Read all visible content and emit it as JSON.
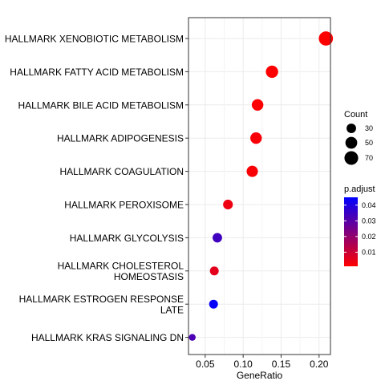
{
  "chart_data": {
    "type": "scatter",
    "title": "",
    "xlabel": "GeneRatio",
    "ylabel": "",
    "xlim": [
      0.028,
      0.215
    ],
    "xticks": [
      0.05,
      0.1,
      0.15,
      0.2
    ],
    "xtick_labels": [
      "0.05",
      "0.10",
      "0.15",
      "0.20"
    ],
    "grid": true,
    "categories": [
      "HALLMARK XENOBIOTIC METABOLISM",
      "HALLMARK FATTY ACID METABOLISM",
      "HALLMARK BILE ACID METABOLISM",
      "HALLMARK ADIPOGENESIS",
      "HALLMARK COAGULATION",
      "HALLMARK PEROXISOME",
      "HALLMARK GLYCOLYSIS",
      "HALLMARK CHOLESTEROL HOMEOSTASIS",
      "HALLMARK ESTROGEN RESPONSE LATE",
      "HALLMARK KRAS SIGNALING DN"
    ],
    "category_lines": [
      [
        "HALLMARK XENOBIOTIC METABOLISM"
      ],
      [
        "HALLMARK FATTY ACID METABOLISM"
      ],
      [
        "HALLMARK BILE ACID METABOLISM"
      ],
      [
        "HALLMARK ADIPOGENESIS"
      ],
      [
        "HALLMARK COAGULATION"
      ],
      [
        "HALLMARK PEROXISOME"
      ],
      [
        "HALLMARK GLYCOLYSIS"
      ],
      [
        "HALLMARK CHOLESTEROL",
        "HOMEOSTASIS"
      ],
      [
        "HALLMARK ESTROGEN RESPONSE",
        "LATE"
      ],
      [
        "HALLMARK KRAS SIGNALING DN"
      ]
    ],
    "points": [
      {
        "category": "HALLMARK XENOBIOTIC METABOLISM",
        "gene_ratio": 0.209,
        "count": 75,
        "p_adjust": 0.001
      },
      {
        "category": "HALLMARK FATTY ACID METABOLISM",
        "gene_ratio": 0.138,
        "count": 55,
        "p_adjust": 0.001
      },
      {
        "category": "HALLMARK BILE ACID METABOLISM",
        "gene_ratio": 0.119,
        "count": 48,
        "p_adjust": 0.001
      },
      {
        "category": "HALLMARK ADIPOGENESIS",
        "gene_ratio": 0.117,
        "count": 47,
        "p_adjust": 0.002
      },
      {
        "category": "HALLMARK COAGULATION",
        "gene_ratio": 0.112,
        "count": 45,
        "p_adjust": 0.002
      },
      {
        "category": "HALLMARK PEROXISOME",
        "gene_ratio": 0.08,
        "count": 32,
        "p_adjust": 0.004
      },
      {
        "category": "HALLMARK GLYCOLYSIS",
        "gene_ratio": 0.066,
        "count": 30,
        "p_adjust": 0.034
      },
      {
        "category": "HALLMARK CHOLESTEROL HOMEOSTASIS",
        "gene_ratio": 0.062,
        "count": 25,
        "p_adjust": 0.006
      },
      {
        "category": "HALLMARK ESTROGEN RESPONSE LATE",
        "gene_ratio": 0.061,
        "count": 25,
        "p_adjust": 0.044
      },
      {
        "category": "HALLMARK KRAS SIGNALING DN",
        "gene_ratio": 0.033,
        "count": 12,
        "p_adjust": 0.032
      }
    ],
    "legend_count": {
      "title": "Count",
      "values": [
        30,
        50,
        70
      ],
      "labels": [
        "30",
        "50",
        "70"
      ],
      "placement": "right"
    },
    "legend_padjust": {
      "title": "p.adjust",
      "ticks": [
        0.04,
        0.03,
        0.02,
        0.01
      ],
      "labels": [
        "0.04",
        "0.03",
        "0.02",
        "0.01"
      ],
      "range": [
        0.001,
        0.045
      ],
      "low_color": "#ff0000",
      "high_color": "#0000ff",
      "placement": "right"
    }
  }
}
